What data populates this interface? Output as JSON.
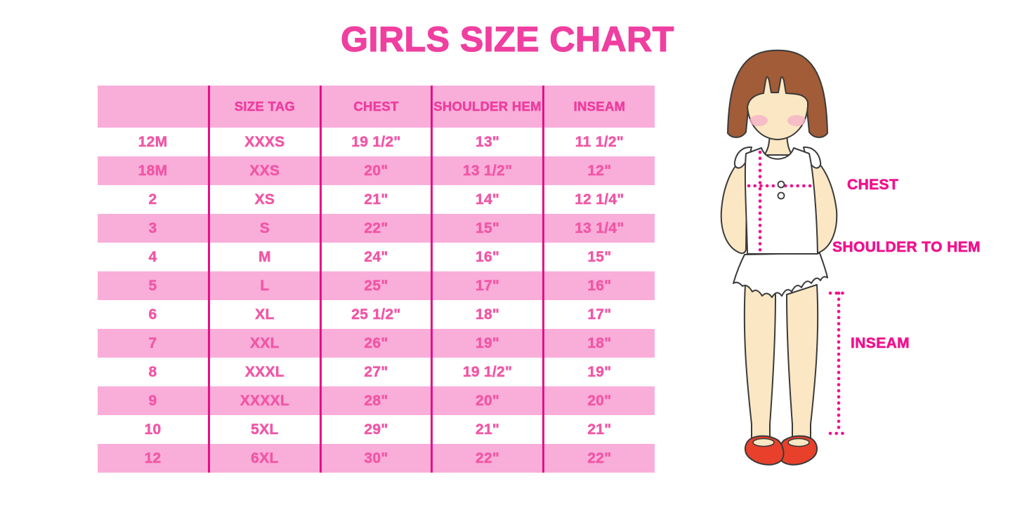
{
  "page": {
    "title": "GIRLS SIZE CHART"
  },
  "chart_data": {
    "type": "table",
    "title": "GIRLS SIZE CHART",
    "columns": [
      "",
      "SIZE TAG",
      "CHEST",
      "SHOULDER HEM",
      "INSEAM"
    ],
    "rows": [
      [
        "12M",
        "XXXS",
        "19 1/2\"",
        "13\"",
        "11 1/2\""
      ],
      [
        "18M",
        "XXS",
        "20\"",
        "13 1/2\"",
        "12\""
      ],
      [
        "2",
        "XS",
        "21\"",
        "14\"",
        "12 1/4\""
      ],
      [
        "3",
        "S",
        "22\"",
        "15\"",
        "13 1/4\""
      ],
      [
        "4",
        "M",
        "24\"",
        "16\"",
        "15\""
      ],
      [
        "5",
        "L",
        "25\"",
        "17\"",
        "16\""
      ],
      [
        "6",
        "XL",
        "25 1/2\"",
        "18\"",
        "17\""
      ],
      [
        "7",
        "XXL",
        "26\"",
        "19\"",
        "18\""
      ],
      [
        "8",
        "XXXL",
        "27\"",
        "19 1/2\"",
        "19\""
      ],
      [
        "9",
        "XXXXL",
        "28\"",
        "20\"",
        "20\""
      ],
      [
        "10",
        "5XL",
        "29\"",
        "21\"",
        "21\""
      ],
      [
        "12",
        "6XL",
        "30\"",
        "22\"",
        "22\""
      ]
    ],
    "row_striping": "alternating white / pink starting white",
    "legend_position": "none",
    "grid": "vertical magenta column separators only"
  },
  "figure": {
    "description": "cartoon girl illustration with measurement guides",
    "labels": {
      "chest": "CHEST",
      "shoulder_to_hem": "SHOULDER TO HEM",
      "inseam": "INSEAM"
    }
  },
  "colors": {
    "title_pink": "#EF3FA0",
    "stripe_pink": "#F9AEDA",
    "grid_line_magenta": "#E60F88",
    "header_text_pink": "#EE3D9E",
    "cell_text_pink": "#F157A6",
    "label_magenta": "#F2108D",
    "measure_dots_pink": "#F2118E",
    "hair_brown": "#A25C38",
    "skin": "#FBE7C3",
    "blush": "#F7B3C8",
    "shoe_red": "#E8402B",
    "outline": "#3A3A3A",
    "garment_white": "#FFFFFF"
  }
}
